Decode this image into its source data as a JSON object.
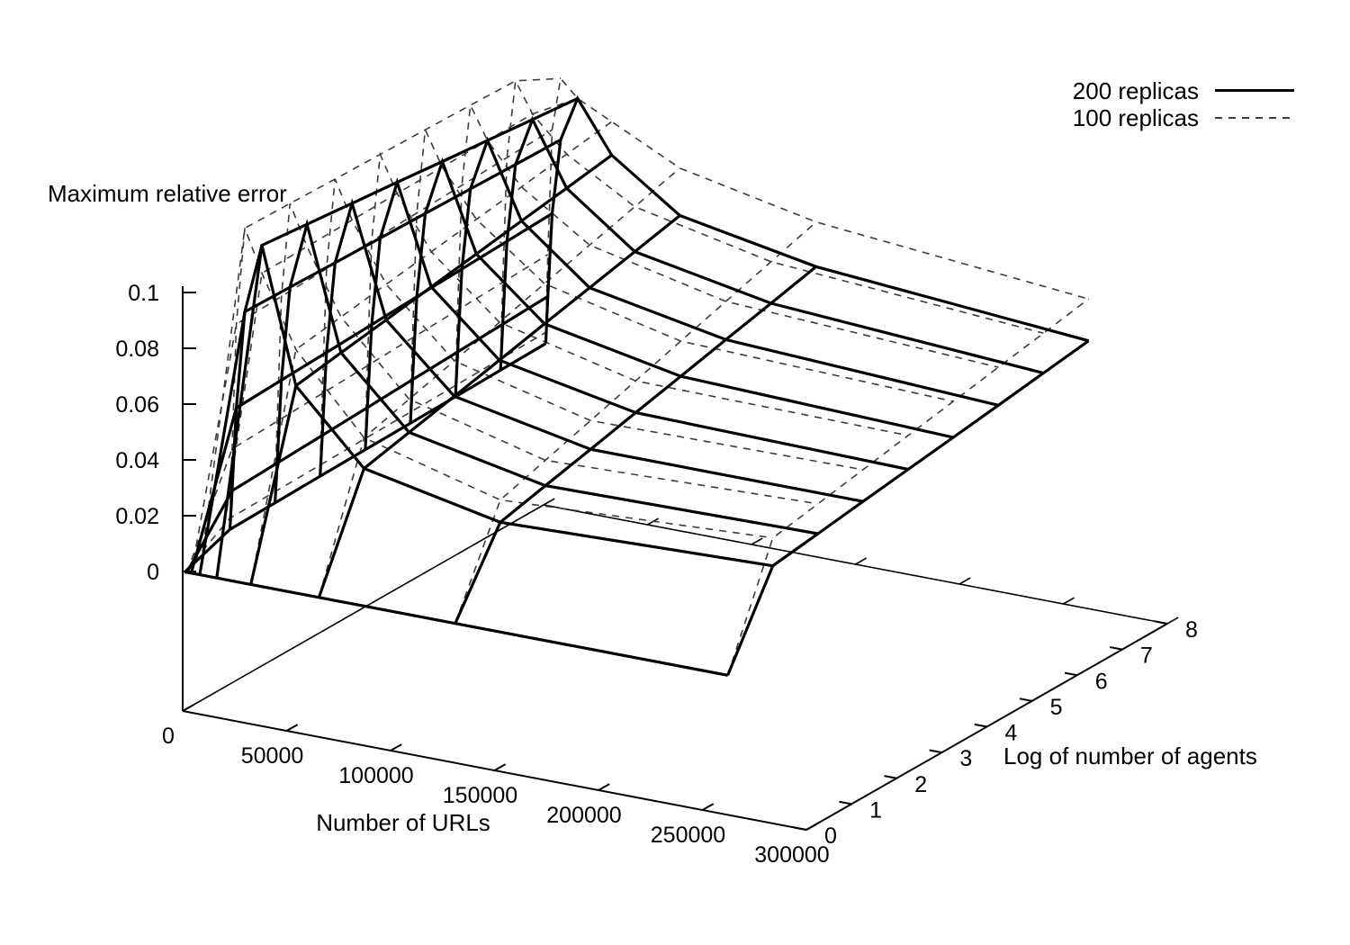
{
  "chart_data": {
    "type": "surface3d-wireframe",
    "zlabel": "Maximum relative error",
    "xlabel": "Number of URLs",
    "ylabel": "Log of number of agents",
    "x_tick_labels": [
      "0",
      "50000",
      "100000",
      "150000",
      "200000",
      "250000",
      "300000"
    ],
    "x_tick_values": [
      0,
      50000,
      100000,
      150000,
      200000,
      250000,
      300000
    ],
    "y_tick_labels": [
      "0",
      "1",
      "2",
      "3",
      "4",
      "5",
      "6",
      "7",
      "8"
    ],
    "y_tick_values": [
      0,
      1,
      2,
      3,
      4,
      5,
      6,
      7,
      8
    ],
    "z_tick_labels": [
      "0",
      "0.02",
      "0.04",
      "0.06",
      "0.08",
      "0.1"
    ],
    "z_tick_values": [
      0,
      0.02,
      0.04,
      0.06,
      0.08,
      0.1
    ],
    "xlim": [
      0,
      300000
    ],
    "ylim": [
      0,
      8
    ],
    "zlim": [
      0,
      0.1
    ],
    "grid_note": "wireframe grid: x = number of URLs (powers of two), y = log of number of agents, z = maximum relative error (values estimated from plot)",
    "grid_x": [
      1024,
      2048,
      4096,
      8192,
      16384,
      32768,
      65536,
      131072,
      262144
    ],
    "grid_y": [
      0,
      1,
      2,
      3,
      4,
      5,
      6,
      7,
      8
    ],
    "series": [
      {
        "name": "200 replicas",
        "style": "solid",
        "color": "#000000",
        "z": [
          [
            0,
            0,
            0,
            0,
            0,
            0,
            0,
            0,
            0
          ],
          [
            0.006,
            0.02,
            0.05,
            0.085,
            0.11,
            0.062,
            0.037,
            0.027,
            0.03
          ],
          [
            0.0063,
            0.0207,
            0.0507,
            0.0846,
            0.1083,
            0.0646,
            0.0407,
            0.0309,
            0.0323
          ],
          [
            0.0066,
            0.0214,
            0.0514,
            0.0841,
            0.1066,
            0.0671,
            0.0444,
            0.0347,
            0.0346
          ],
          [
            0.0069,
            0.0221,
            0.0521,
            0.0837,
            0.1049,
            0.0697,
            0.0481,
            0.0386,
            0.0369
          ],
          [
            0.0071,
            0.0229,
            0.0529,
            0.0833,
            0.1031,
            0.0723,
            0.0519,
            0.0424,
            0.0391
          ],
          [
            0.0074,
            0.0236,
            0.0536,
            0.0829,
            0.1014,
            0.0749,
            0.0556,
            0.0463,
            0.0414
          ],
          [
            0.0077,
            0.0243,
            0.0543,
            0.0824,
            0.0997,
            0.0774,
            0.0593,
            0.0501,
            0.0437
          ],
          [
            0.008,
            0.025,
            0.055,
            0.082,
            0.098,
            0.08,
            0.063,
            0.054,
            0.046
          ]
        ]
      },
      {
        "name": "100 replicas",
        "style": "dashed",
        "color": "#3c3c3c",
        "z": [
          [
            0,
            0,
            0,
            0,
            0,
            0,
            0,
            0,
            0
          ],
          [
            0.01,
            0.035,
            0.08,
            0.115,
            0.1,
            0.075,
            0.048,
            0.035,
            0.04
          ],
          [
            0.0103,
            0.0357,
            0.0807,
            0.1146,
            0.1003,
            0.0774,
            0.0526,
            0.04,
            0.043
          ],
          [
            0.0106,
            0.0364,
            0.0814,
            0.1141,
            0.1006,
            0.0799,
            0.0571,
            0.045,
            0.046
          ],
          [
            0.0109,
            0.0371,
            0.0821,
            0.1137,
            0.1009,
            0.0823,
            0.0617,
            0.05,
            0.049
          ],
          [
            0.0111,
            0.0379,
            0.0829,
            0.1133,
            0.1011,
            0.0847,
            0.0663,
            0.055,
            0.052
          ],
          [
            0.0114,
            0.0386,
            0.0836,
            0.1129,
            0.1014,
            0.0871,
            0.0709,
            0.06,
            0.055
          ],
          [
            0.0117,
            0.0393,
            0.0843,
            0.1124,
            0.1017,
            0.0896,
            0.0754,
            0.065,
            0.058
          ],
          [
            0.012,
            0.04,
            0.085,
            0.104,
            0.098,
            0.092,
            0.08,
            0.07,
            0.061
          ]
        ]
      }
    ],
    "legend_position": "top-right"
  }
}
